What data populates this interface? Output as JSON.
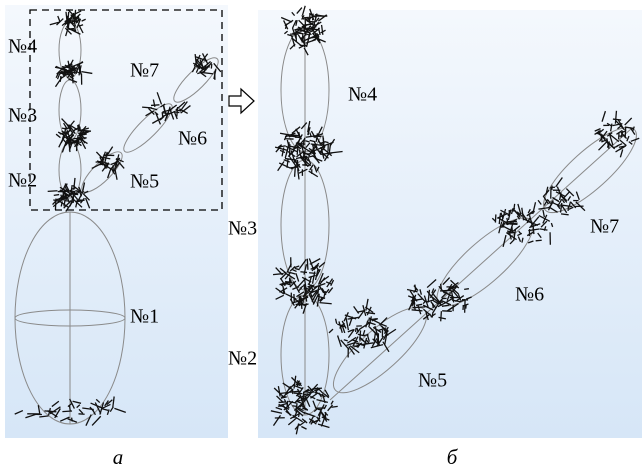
{
  "panels": [
    {
      "caption": "а",
      "labels": [
        "№4",
        "№3",
        "№2",
        "№7",
        "№6",
        "№5",
        "№1"
      ]
    },
    {
      "caption": "б",
      "labels": [
        "№4",
        "№3",
        "№2",
        "№7",
        "№6",
        "№5"
      ]
    }
  ]
}
